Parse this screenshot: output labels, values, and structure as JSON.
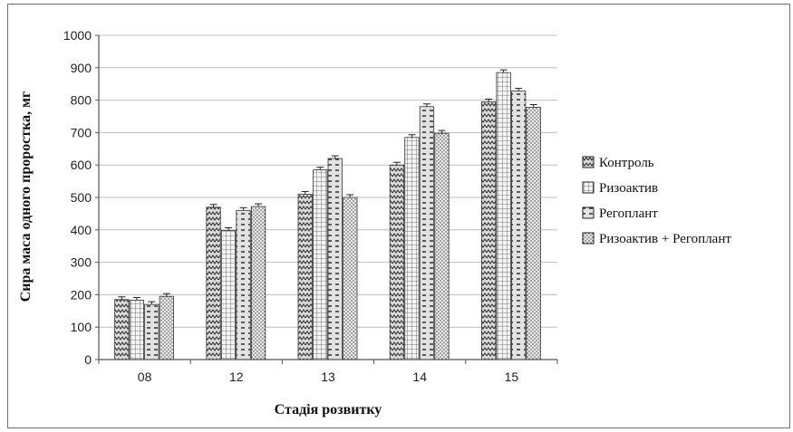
{
  "chart_data": {
    "type": "bar",
    "title": "",
    "xlabel": "Стадія розвитку",
    "ylabel": "Сира маса одного проростка, мг",
    "ylim": [
      0,
      1000
    ],
    "yticks": [
      "0",
      "100",
      "200",
      "300",
      "400",
      "500",
      "600",
      "700",
      "800",
      "900",
      "1000"
    ],
    "categories": [
      "08",
      "12",
      "13",
      "14",
      "15"
    ],
    "series": [
      {
        "name": "Контроль",
        "values": [
          185,
          470,
          510,
          600,
          795
        ],
        "pattern": "zigzag"
      },
      {
        "name": "Ризоактив",
        "values": [
          183,
          398,
          585,
          685,
          885
        ],
        "pattern": "grid"
      },
      {
        "name": "Регоплант",
        "values": [
          170,
          460,
          620,
          780,
          828
        ],
        "pattern": "dash"
      },
      {
        "name": "Ризоактив + Регоплант",
        "values": [
          195,
          472,
          500,
          698,
          778
        ],
        "pattern": "dots"
      }
    ],
    "grid": true,
    "error_bars": true,
    "legend_position": "right",
    "colors": {
      "axis": "#555555",
      "grid": "#bdbdbd",
      "bar_fill": "#d9d9d9",
      "bar_stroke": "#333333"
    }
  }
}
